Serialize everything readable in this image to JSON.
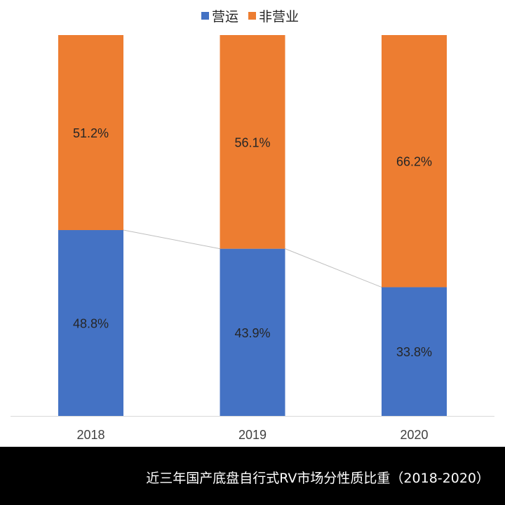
{
  "chart_data": {
    "type": "bar",
    "stacked": true,
    "percent": true,
    "categories": [
      "2018",
      "2019",
      "2020"
    ],
    "series": [
      {
        "name": "营运",
        "values": [
          48.8,
          43.9,
          33.8
        ],
        "color": "#4472C4"
      },
      {
        "name": "非营业",
        "values": [
          51.2,
          56.1,
          66.2
        ],
        "color": "#ED7D31"
      }
    ],
    "value_suffix": "%",
    "ylim": [
      0,
      100
    ],
    "series_lines": true,
    "grid": false,
    "legend": "top"
  },
  "caption": "近三年国产底盘自行式RV市场分性质比重（2018-2020）"
}
